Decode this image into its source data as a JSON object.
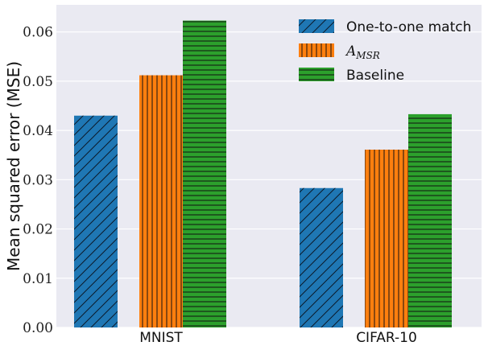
{
  "chart_data": {
    "type": "bar",
    "title": "",
    "xlabel": "",
    "ylabel": "Mean squared error (MSE)",
    "categories": [
      "MNIST",
      "CIFAR-10"
    ],
    "series": [
      {
        "name": "One-to-one match",
        "values": [
          0.043,
          0.0283
        ],
        "color": "#1f77b4",
        "hatch": "diagonal"
      },
      {
        "name": "A_MSR",
        "values": [
          0.0512,
          0.0361
        ],
        "color": "#ff7f0e",
        "hatch": "vertical"
      },
      {
        "name": "Baseline",
        "values": [
          0.0623,
          0.0433
        ],
        "color": "#2ca02c",
        "hatch": "horizontal"
      }
    ],
    "ylim": [
      0,
      0.0655
    ],
    "yticks": [
      0,
      0.01,
      0.02,
      0.03,
      0.04,
      0.05,
      0.06
    ],
    "ytick_labels": [
      "0.00",
      "0.01",
      "0.02",
      "0.03",
      "0.04",
      "0.05",
      "0.06"
    ],
    "grid": true,
    "legend_position": "top-right",
    "background": "#eaeaf2"
  }
}
